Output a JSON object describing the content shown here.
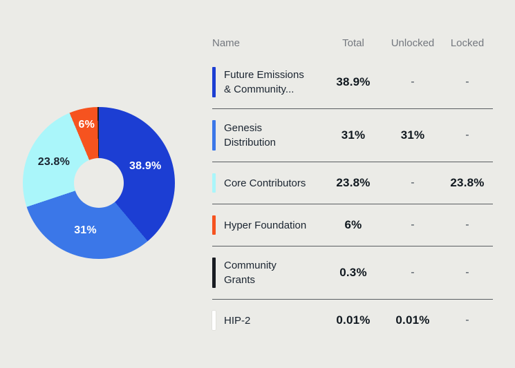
{
  "background_color": "#ebebe7",
  "chart_data": {
    "type": "pie",
    "variant": "donut",
    "title": "",
    "direction": "clockwise",
    "start_angle_deg": 0,
    "inner_radius_ratio": 0.33,
    "slices": [
      {
        "name": "Future Emissions & Community Rewards",
        "value": 38.9,
        "label": "38.9%",
        "color": "#1c3ed3",
        "label_color": "#ffffff",
        "show_label": true
      },
      {
        "name": "Genesis Distribution",
        "value": 31,
        "label": "31%",
        "color": "#3b77e8",
        "label_color": "#ffffff",
        "show_label": true
      },
      {
        "name": "Core Contributors",
        "value": 23.8,
        "label": "23.8%",
        "color": "#aaf6fa",
        "label_color": "#1a2430",
        "show_label": true
      },
      {
        "name": "Hyper Foundation",
        "value": 6,
        "label": "6%",
        "color": "#f6531f",
        "label_color": "#ffffff",
        "show_label": true
      },
      {
        "name": "Community Grants",
        "value": 0.3,
        "label": "0.3%",
        "color": "#191c22",
        "label_color": "#ffffff",
        "show_label": false
      },
      {
        "name": "HIP-2",
        "value": 0.01,
        "label": "0.01%",
        "color": "#ffffff",
        "label_color": "#1a2430",
        "show_label": false
      }
    ]
  },
  "table": {
    "columns": [
      "Name",
      "Total",
      "Unlocked",
      "Locked"
    ],
    "rows": [
      {
        "name": "Future Emissions\n& Community...",
        "lines": 2,
        "marker_color": "#1c3ed3",
        "total": "38.9%",
        "unlocked": "-",
        "locked": "-"
      },
      {
        "name": "Genesis\nDistribution",
        "lines": 2,
        "marker_color": "#3b77e8",
        "total": "31%",
        "unlocked": "31%",
        "locked": "-"
      },
      {
        "name": "Core Contributors",
        "lines": 1,
        "marker_color": "#aaf6fa",
        "total": "23.8%",
        "unlocked": "-",
        "locked": "23.8%"
      },
      {
        "name": "Hyper Foundation",
        "lines": 1,
        "marker_color": "#f6531f",
        "total": "6%",
        "unlocked": "-",
        "locked": "-"
      },
      {
        "name": "Community\nGrants",
        "lines": 2,
        "marker_color": "#191c22",
        "total": "0.3%",
        "unlocked": "-",
        "locked": "-"
      },
      {
        "name": "HIP-2",
        "lines": 1,
        "marker_color": "#ffffff",
        "total": "0.01%",
        "unlocked": "0.01%",
        "locked": "-"
      }
    ]
  },
  "colors": {
    "background": "#ebebe7",
    "divider": "#585c60",
    "header_text": "#73777e",
    "name_text": "#1a2430",
    "value_text": "#10181f",
    "dash_text": "#444e58"
  }
}
